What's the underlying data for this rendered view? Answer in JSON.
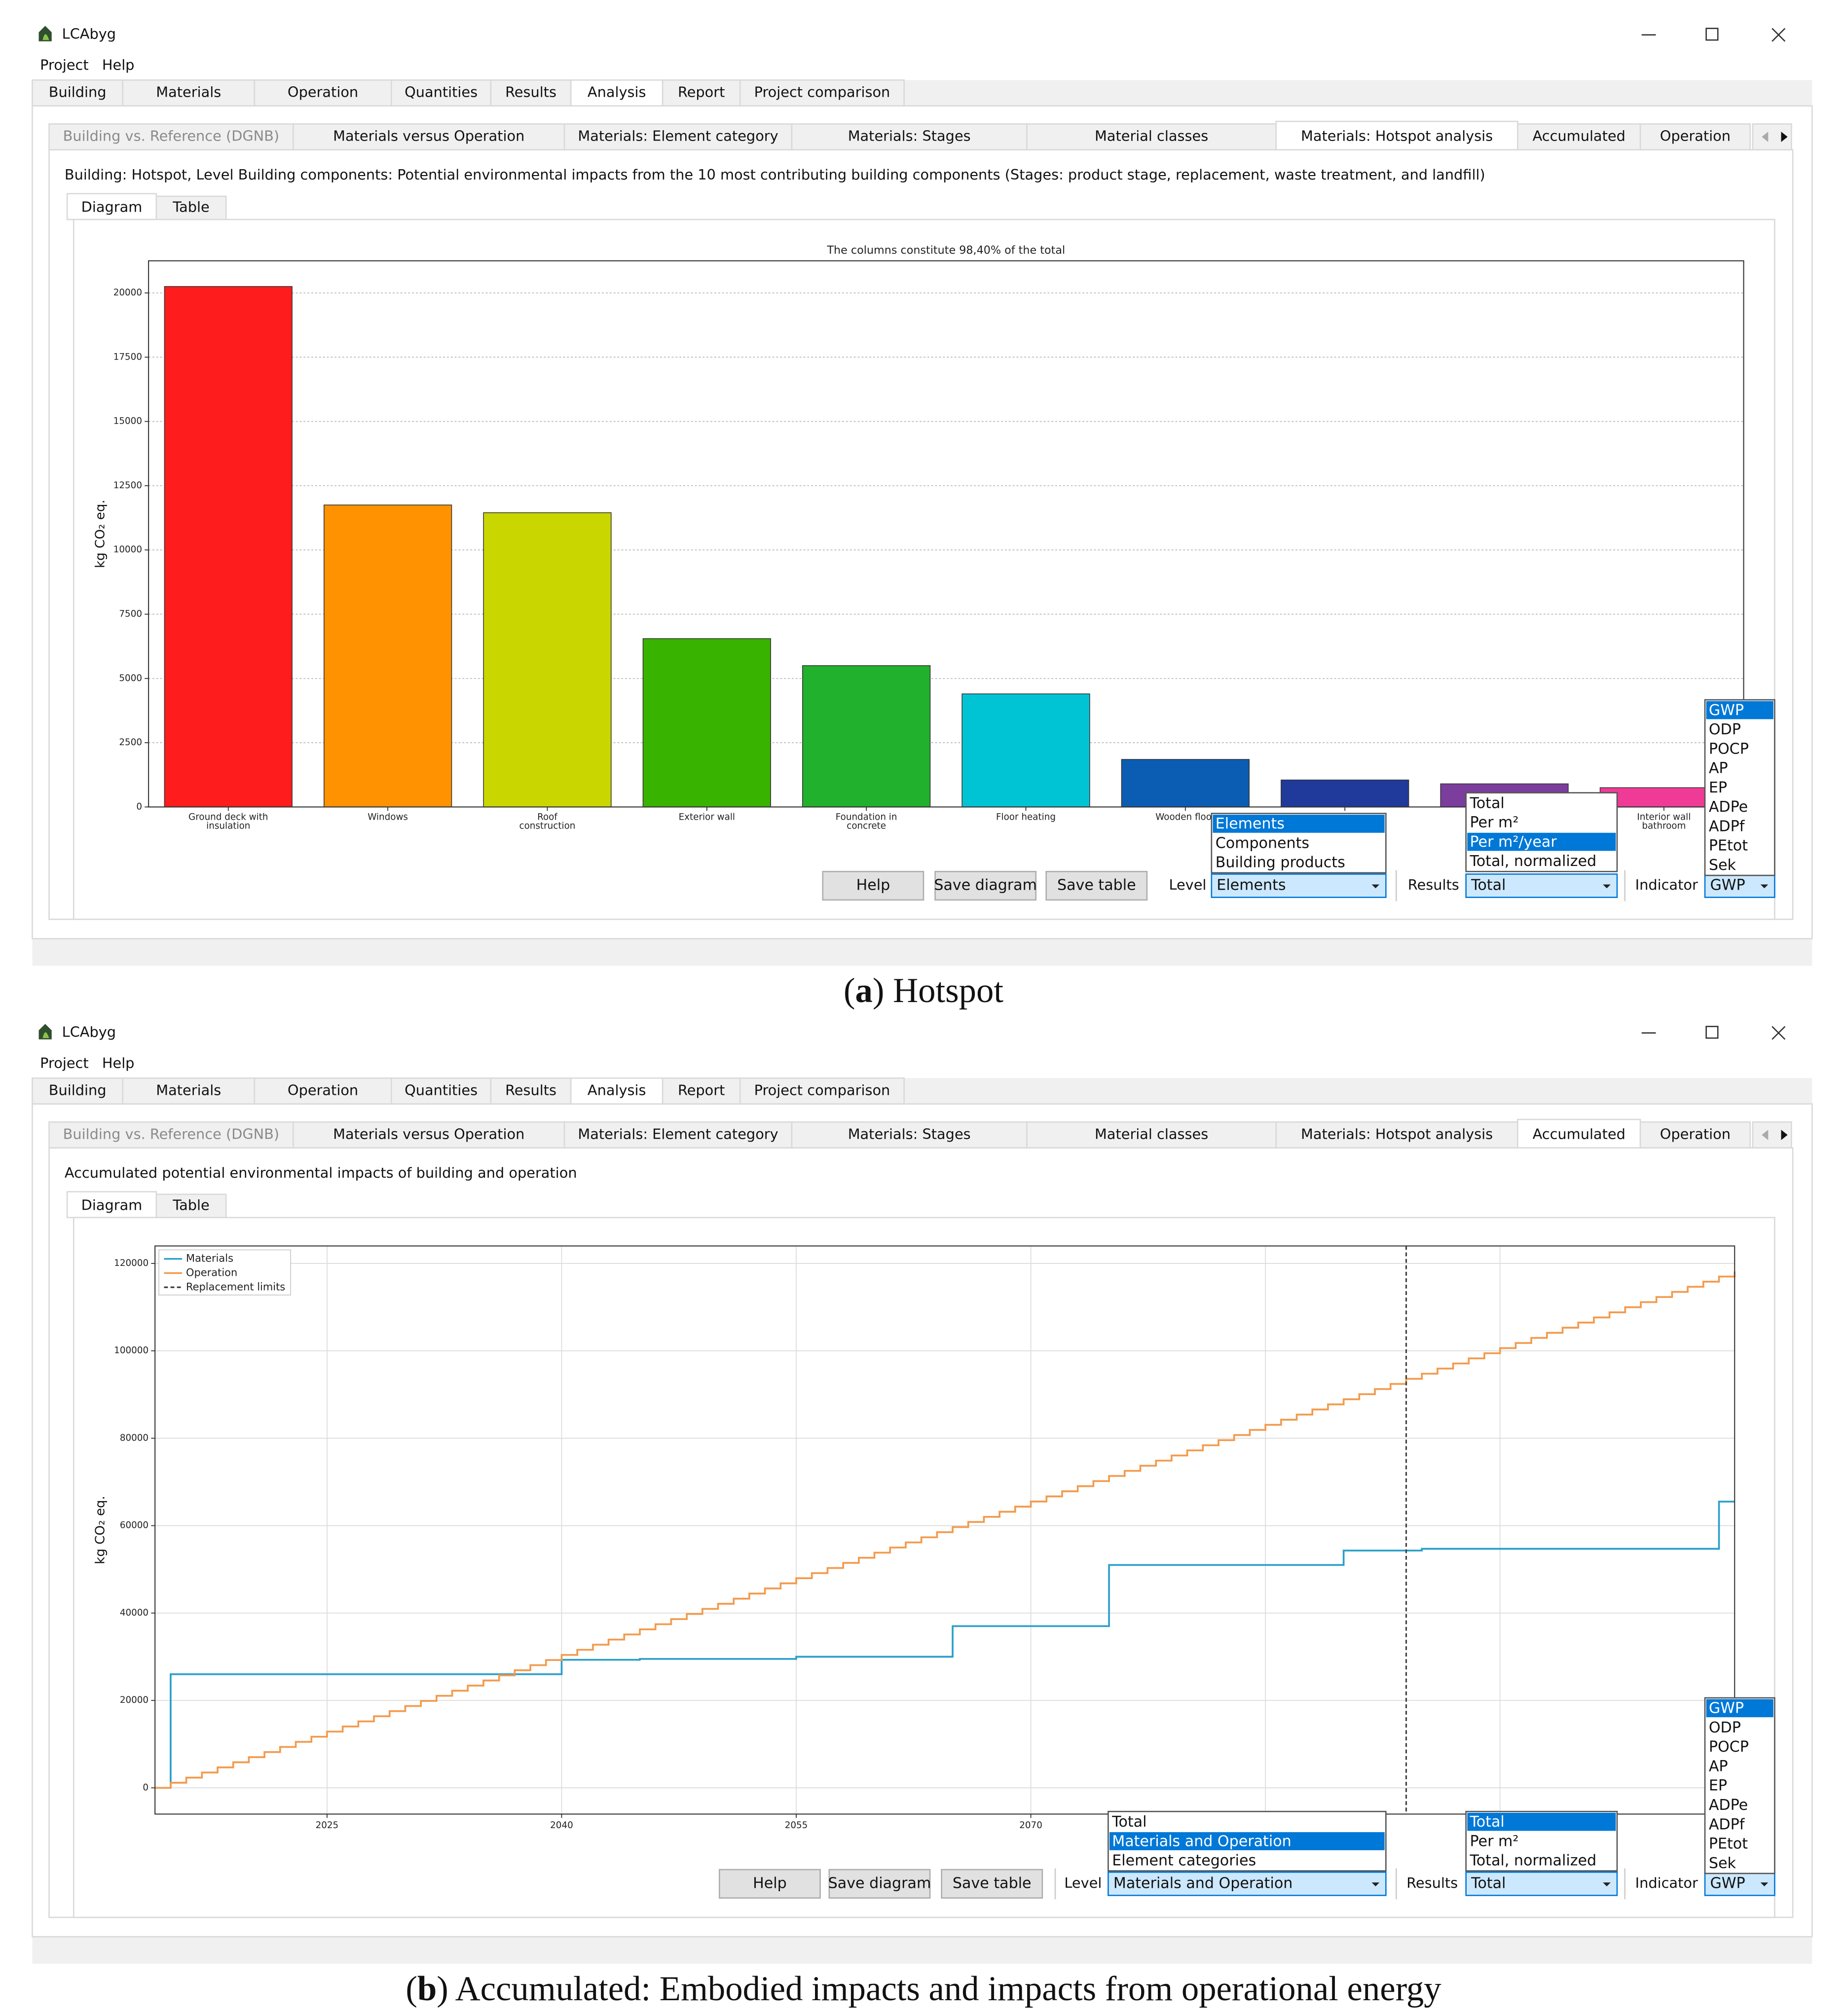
{
  "panels": [
    {
      "app_title": "LCAbyg",
      "menu": [
        "Project",
        "Help"
      ],
      "main_tabs": [
        "Building",
        "Materials",
        "Operation",
        "Quantities",
        "Results",
        "Analysis",
        "Report",
        "Project comparison"
      ],
      "active_main_tab": 5,
      "sub_tabs": [
        "Building vs. Reference (DGNB)",
        "Materials versus Operation",
        "Materials: Element category",
        "Materials: Stages",
        "Material classes",
        "Materials: Hotspot analysis",
        "Accumulated",
        "Operation"
      ],
      "active_sub_tab": 5,
      "heading": "Building: Hotspot, Level Building components: Potential environmental impacts from the 10 most contributing building components (Stages: product stage, replacement, waste treatment, and landfill)",
      "view_tabs": [
        "Diagram",
        "Table"
      ],
      "chart": {
        "type": "bar",
        "title": "The columns constitute 98,40% of the total",
        "ylabel": "kg CO₂ eq.",
        "categories": [
          "Ground deck with insulation",
          "Windows",
          "Roof construction",
          "Exterior wall",
          "Foundation in concrete",
          "Floor heating",
          "Wooden floor",
          null,
          null,
          "Interior wall bathroom"
        ],
        "values": [
          20250,
          11750,
          11450,
          6550,
          5500,
          4400,
          1850,
          1050,
          900,
          750
        ],
        "colors": [
          "#ff1c1c",
          "#ff9200",
          "#c9d600",
          "#38b300",
          "#22b12c",
          "#00c4d4",
          "#0b5db3",
          "#1f3a9b",
          "#7b3e9d",
          "#ef3b96"
        ],
        "ylim": [
          0,
          21250
        ],
        "yticks": [
          0,
          2500,
          5000,
          7500,
          10000,
          12500,
          15000,
          17500,
          20000
        ],
        "grid": true
      },
      "buttons": [
        "Help",
        "Save diagram",
        "Save table"
      ],
      "controls": [
        {
          "label": "Level",
          "value": "Elements",
          "options": [
            "Elements",
            "Components",
            "Building products"
          ],
          "highlighted": 0
        },
        {
          "label": "Results",
          "value": "Total",
          "options": [
            "Total",
            "Per m²",
            "Per m²/year",
            "Total, normalized"
          ],
          "highlighted": 2
        },
        {
          "label": "Indicator",
          "value": "GWP",
          "options": [
            "GWP",
            "ODP",
            "POCP",
            "AP",
            "EP",
            "ADPe",
            "ADPf",
            "PEtot",
            "Sek"
          ],
          "highlighted": 0
        }
      ],
      "caption": {
        "open": "(",
        "letter": "a",
        "rest": ") Hotspot"
      }
    },
    {
      "app_title": "LCAbyg",
      "menu": [
        "Project",
        "Help"
      ],
      "main_tabs": [
        "Building",
        "Materials",
        "Operation",
        "Quantities",
        "Results",
        "Analysis",
        "Report",
        "Project comparison"
      ],
      "active_main_tab": 5,
      "sub_tabs": [
        "Building vs. Reference (DGNB)",
        "Materials versus Operation",
        "Materials: Element category",
        "Materials: Stages",
        "Material classes",
        "Materials: Hotspot analysis",
        "Accumulated",
        "Operation"
      ],
      "active_sub_tab": 6,
      "heading": "Accumulated potential environmental impacts of building and operation",
      "view_tabs": [
        "Diagram",
        "Table"
      ],
      "chart": {
        "type": "line",
        "ylabel": "kg CO₂ eq.",
        "series": [
          {
            "name": "Materials",
            "color": "#2a9fca",
            "step": true,
            "x": [
              2014,
              2015,
              2040,
              2045,
              2055,
              2065,
              2075,
              2090,
              2095,
              2114,
              2115
            ],
            "values": [
              0,
              26000,
              29300,
              29500,
              30000,
              37000,
              51000,
              54300,
              54700,
              65500,
              65500
            ]
          },
          {
            "name": "Operation",
            "color": "#f39a4c",
            "step": true,
            "x": [
              2014,
              2015,
              2016,
              2017,
              2018,
              2019,
              2020,
              2021,
              2022,
              2023,
              2024,
              2025,
              2026,
              2027,
              2028,
              2029,
              2030,
              2031,
              2032,
              2033,
              2034,
              2035,
              2036,
              2037,
              2038,
              2039,
              2040,
              2041,
              2042,
              2043,
              2044,
              2045,
              2046,
              2047,
              2048,
              2049,
              2050,
              2051,
              2052,
              2053,
              2054,
              2055,
              2056,
              2057,
              2058,
              2059,
              2060,
              2061,
              2062,
              2063,
              2064,
              2065,
              2066,
              2067,
              2068,
              2069,
              2070,
              2071,
              2072,
              2073,
              2074,
              2075,
              2076,
              2077,
              2078,
              2079,
              2080,
              2081,
              2082,
              2083,
              2084,
              2085,
              2086,
              2087,
              2088,
              2089,
              2090,
              2091,
              2092,
              2093,
              2094,
              2095,
              2096,
              2097,
              2098,
              2099,
              2100,
              2101,
              2102,
              2103,
              2104,
              2105,
              2106,
              2107,
              2108,
              2109,
              2110,
              2111,
              2112,
              2113,
              2114,
              2115
            ],
            "values": [
              0,
              1170,
              2340,
              3510,
              4680,
              5850,
              7020,
              8190,
              9360,
              10530,
              11700,
              12870,
              14040,
              15210,
              16380,
              17550,
              18720,
              19890,
              21060,
              22230,
              23400,
              24570,
              25740,
              26910,
              28080,
              29250,
              30420,
              31590,
              32760,
              33930,
              35100,
              36270,
              37440,
              38610,
              39780,
              40950,
              42120,
              43290,
              44460,
              45630,
              46800,
              47970,
              49140,
              50310,
              51480,
              52650,
              53820,
              54990,
              56160,
              57330,
              58500,
              59670,
              60840,
              62010,
              63180,
              64350,
              65520,
              66690,
              67860,
              69030,
              70200,
              71370,
              72540,
              73710,
              74880,
              76050,
              77220,
              78390,
              79560,
              80730,
              81900,
              83070,
              84240,
              85410,
              86580,
              87750,
              88920,
              90090,
              91260,
              92430,
              93600,
              94770,
              95940,
              97110,
              98280,
              99450,
              100620,
              101790,
              102960,
              104130,
              105300,
              106470,
              107640,
              108810,
              109980,
              111150,
              112320,
              113490,
              114660,
              115830,
              117000,
              118170
            ]
          },
          {
            "name": "Replacement limits",
            "color": "#444444",
            "dashed": true,
            "x": [
              2094
            ]
          }
        ],
        "xlim": [
          2014,
          2115
        ],
        "xticks": [
          2025,
          2040,
          2055,
          2070,
          2085,
          2100
        ],
        "ylim": [
          -6000,
          124000
        ],
        "yticks": [
          0,
          20000,
          40000,
          60000,
          80000,
          100000,
          120000
        ],
        "grid": true,
        "legend": "upper left"
      },
      "buttons": [
        "Help",
        "Save diagram",
        "Save table"
      ],
      "controls": [
        {
          "label": "Level",
          "value": "Materials and Operation",
          "options": [
            "Total",
            "Materials and Operation",
            "Element categories"
          ],
          "highlighted": 1
        },
        {
          "label": "Results",
          "value": "Total",
          "options": [
            "Total",
            "Per m²",
            "Total, normalized"
          ],
          "highlighted": 0
        },
        {
          "label": "Indicator",
          "value": "GWP",
          "options": [
            "GWP",
            "ODP",
            "POCP",
            "AP",
            "EP",
            "ADPe",
            "ADPf",
            "PEtot",
            "Sek"
          ],
          "highlighted": 0
        }
      ],
      "caption": {
        "open": "(",
        "letter": "b",
        "rest": ") Accumulated: Embodied impacts and impacts from operational energy"
      }
    }
  ]
}
